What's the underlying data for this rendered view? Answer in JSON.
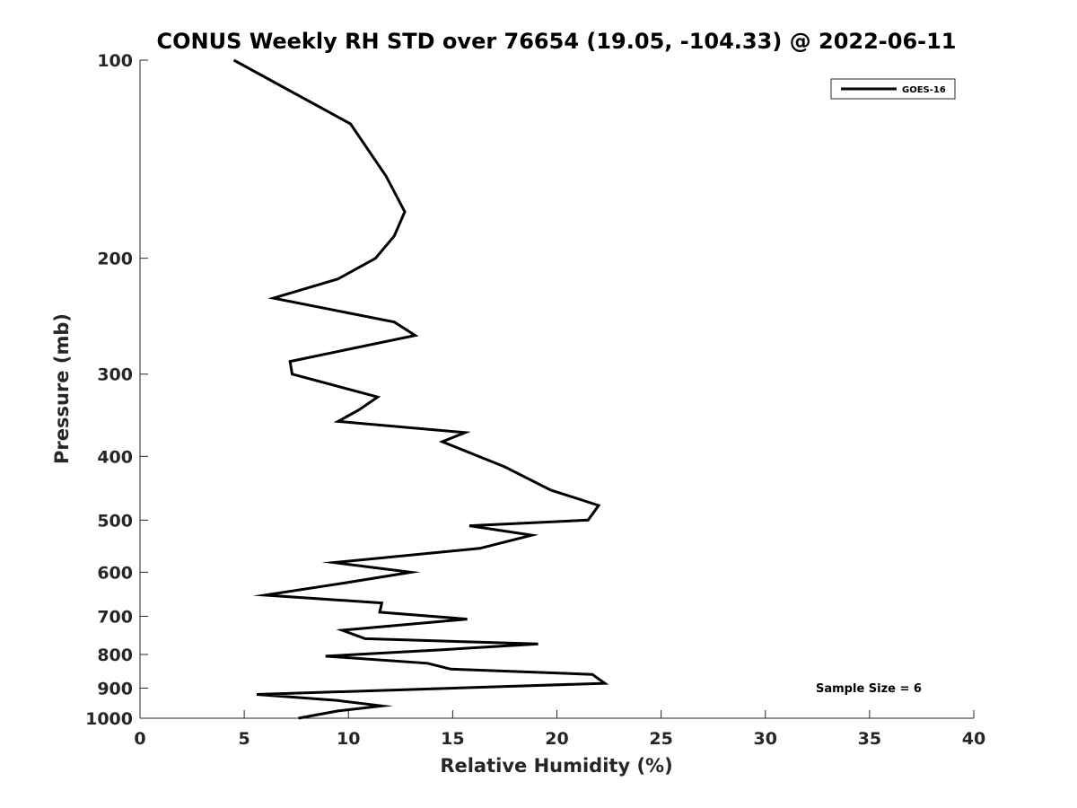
{
  "chart_data": {
    "type": "line",
    "title": "CONUS Weekly RH STD over 76654 (19.05, -104.33) @ 2022-06-11",
    "xlabel": "Relative Humidity (%)",
    "ylabel": "Pressure (mb)",
    "xlim": [
      0,
      40
    ],
    "ylim": [
      100,
      1000
    ],
    "yscale": "log",
    "yreversed": true,
    "xticks": [
      0,
      5,
      10,
      15,
      20,
      25,
      30,
      35,
      40
    ],
    "xtick_labels": [
      "0",
      "5",
      "10",
      "15",
      "20",
      "25",
      "30",
      "35",
      "40"
    ],
    "yticks": [
      100,
      200,
      300,
      400,
      500,
      600,
      700,
      800,
      900,
      1000
    ],
    "ytick_labels": [
      "100",
      "200",
      "300",
      "400",
      "500",
      "600",
      "700",
      "800",
      "900",
      "1000"
    ],
    "grid": false,
    "legend_position": "top-right",
    "annotation": "Sample Size = 6",
    "colors": {
      "line": "#000000",
      "axis": "#262626"
    },
    "series": [
      {
        "name": "GOES-16",
        "points": [
          [
            4.5,
            100
          ],
          [
            10.1,
            125
          ],
          [
            11.8,
            150
          ],
          [
            12.7,
            170
          ],
          [
            12.2,
            185
          ],
          [
            11.3,
            200
          ],
          [
            9.5,
            215
          ],
          [
            6.4,
            230
          ],
          [
            12.2,
            250
          ],
          [
            13.2,
            262
          ],
          [
            7.2,
            287
          ],
          [
            7.3,
            300
          ],
          [
            11.4,
            325
          ],
          [
            10.5,
            340
          ],
          [
            9.5,
            354
          ],
          [
            15.6,
            368
          ],
          [
            14.5,
            380
          ],
          [
            17.5,
            415
          ],
          [
            19.7,
            450
          ],
          [
            22.0,
            475
          ],
          [
            21.5,
            500
          ],
          [
            15.8,
            510
          ],
          [
            18.8,
            527
          ],
          [
            16.3,
            552
          ],
          [
            9.3,
            580
          ],
          [
            13.0,
            600
          ],
          [
            9.8,
            623
          ],
          [
            6.0,
            650
          ],
          [
            11.6,
            668
          ],
          [
            11.5,
            690
          ],
          [
            15.7,
            707
          ],
          [
            9.7,
            735
          ],
          [
            10.8,
            757
          ],
          [
            19.1,
            771
          ],
          [
            14.5,
            787
          ],
          [
            8.9,
            805
          ],
          [
            13.8,
            825
          ],
          [
            14.9,
            842
          ],
          [
            21.7,
            858
          ],
          [
            22.3,
            885
          ],
          [
            5.6,
            920
          ],
          [
            9.5,
            940
          ],
          [
            11.6,
            958
          ],
          [
            9.5,
            975
          ],
          [
            7.6,
            1000
          ]
        ]
      }
    ]
  }
}
